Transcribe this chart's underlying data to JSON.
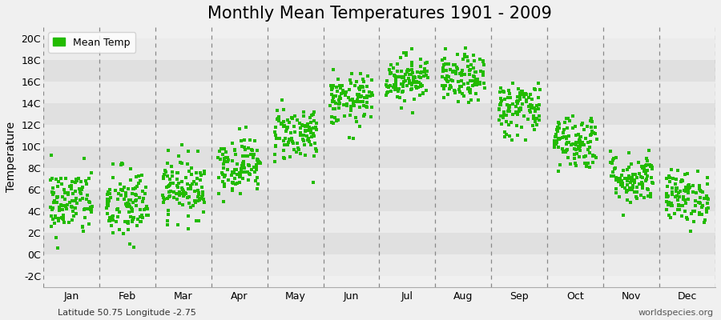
{
  "title": "Monthly Mean Temperatures 1901 - 2009",
  "ylabel": "Temperature",
  "subtitle_left": "Latitude 50.75 Longitude -2.75",
  "subtitle_right": "worldspecies.org",
  "legend_label": "Mean Temp",
  "yticks": [
    -2,
    0,
    2,
    4,
    6,
    8,
    10,
    12,
    14,
    16,
    18,
    20
  ],
  "ytick_labels": [
    "-2C",
    "0C",
    "2C",
    "4C",
    "6C",
    "8C",
    "10C",
    "12C",
    "14C",
    "16C",
    "18C",
    "20C"
  ],
  "ylim": [
    -3,
    21
  ],
  "months": [
    "Jan",
    "Feb",
    "Mar",
    "Apr",
    "May",
    "Jun",
    "Jul",
    "Aug",
    "Sep",
    "Oct",
    "Nov",
    "Dec"
  ],
  "month_means": [
    4.8,
    4.5,
    6.2,
    8.3,
    11.2,
    14.2,
    16.3,
    16.2,
    13.5,
    10.5,
    7.0,
    5.3
  ],
  "month_stds": [
    1.6,
    1.8,
    1.4,
    1.3,
    1.3,
    1.2,
    1.1,
    1.1,
    1.3,
    1.3,
    1.2,
    1.2
  ],
  "n_years": 109,
  "dot_color": "#22BB00",
  "dot_size": 8,
  "marker": "s",
  "bg_color": "#F0F0F0",
  "band_colors": [
    "#EBEBEB",
    "#E0E0E0"
  ],
  "dashed_line_color": "#888888",
  "title_fontsize": 15,
  "axis_label_fontsize": 10,
  "tick_fontsize": 9,
  "legend_fontsize": 9,
  "seed": 42
}
